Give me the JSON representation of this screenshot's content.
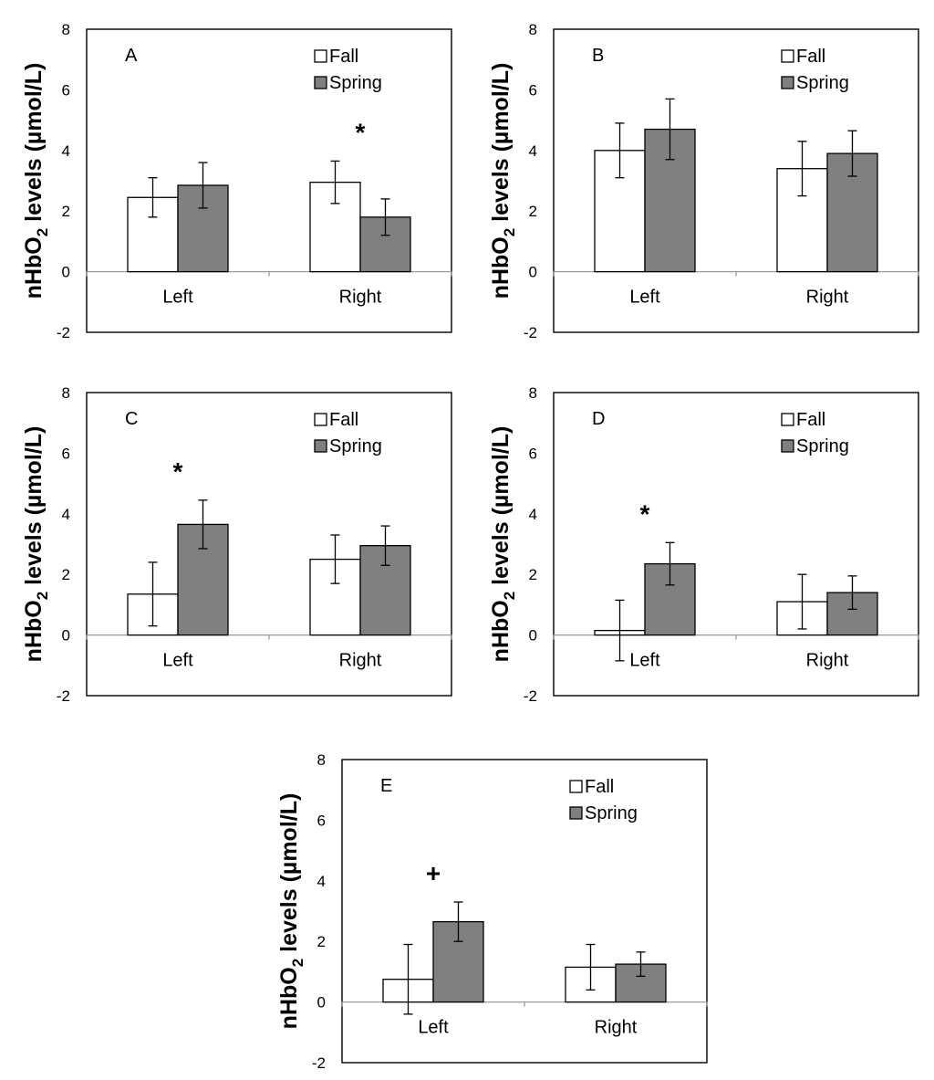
{
  "chart_data": [
    {
      "type": "bar",
      "panel_label": "A",
      "categories": [
        "Left",
        "Right"
      ],
      "series": [
        {
          "name": "Fall",
          "values": [
            2.45,
            2.95
          ],
          "errors": [
            0.65,
            0.7
          ],
          "color": "#ffffff"
        },
        {
          "name": "Spring",
          "values": [
            2.85,
            1.8
          ],
          "errors": [
            0.75,
            0.6
          ],
          "color": "#808080"
        }
      ],
      "ylabel_parts": [
        "nHbO",
        "2",
        " levels (µmol/L)"
      ],
      "ylim": [
        -2,
        8
      ],
      "yticks": [
        "8",
        "6",
        "4",
        "2",
        "0",
        "-2"
      ],
      "annotations": [
        {
          "text": "*",
          "category": 1
        }
      ],
      "legend": "top-right"
    },
    {
      "type": "bar",
      "panel_label": "B",
      "categories": [
        "Left",
        "Right"
      ],
      "series": [
        {
          "name": "Fall",
          "values": [
            4.0,
            3.4
          ],
          "errors": [
            0.9,
            0.9
          ],
          "color": "#ffffff"
        },
        {
          "name": "Spring",
          "values": [
            4.7,
            3.9
          ],
          "errors": [
            1.0,
            0.75
          ],
          "color": "#808080"
        }
      ],
      "ylabel_parts": [
        "nHbO",
        "2",
        " levels (µmol/L)"
      ],
      "ylim": [
        -2,
        8
      ],
      "yticks": [
        "8",
        "6",
        "4",
        "2",
        "0",
        "-2"
      ],
      "annotations": [],
      "legend": "top-right"
    },
    {
      "type": "bar",
      "panel_label": "C",
      "categories": [
        "Left",
        "Right"
      ],
      "series": [
        {
          "name": "Fall",
          "values": [
            1.35,
            2.5
          ],
          "errors": [
            1.05,
            0.8
          ],
          "color": "#ffffff"
        },
        {
          "name": "Spring",
          "values": [
            3.65,
            2.95
          ],
          "errors": [
            0.8,
            0.65
          ],
          "color": "#808080"
        }
      ],
      "ylabel_parts": [
        "nHbO",
        "2",
        " levels (µmol/L)"
      ],
      "ylim": [
        -2,
        8
      ],
      "yticks": [
        "8",
        "6",
        "4",
        "2",
        "0",
        "-2"
      ],
      "annotations": [
        {
          "text": "*",
          "category": 0
        }
      ],
      "legend": "top-right"
    },
    {
      "type": "bar",
      "panel_label": "D",
      "categories": [
        "Left",
        "Right"
      ],
      "series": [
        {
          "name": "Fall",
          "values": [
            0.15,
            1.1
          ],
          "errors": [
            1.0,
            0.9
          ],
          "color": "#ffffff"
        },
        {
          "name": "Spring",
          "values": [
            2.35,
            1.4
          ],
          "errors": [
            0.7,
            0.55
          ],
          "color": "#808080"
        }
      ],
      "ylabel_parts": [
        "nHbO",
        "2",
        " levels (µmol/L)"
      ],
      "ylim": [
        -2,
        8
      ],
      "yticks": [
        "8",
        "6",
        "4",
        "2",
        "0",
        "-2"
      ],
      "annotations": [
        {
          "text": "*",
          "category": 0
        }
      ],
      "legend": "top-right"
    },
    {
      "type": "bar",
      "panel_label": "E",
      "categories": [
        "Left",
        "Right"
      ],
      "series": [
        {
          "name": "Fall",
          "values": [
            0.75,
            1.15
          ],
          "errors": [
            1.15,
            0.75
          ],
          "color": "#ffffff"
        },
        {
          "name": "Spring",
          "values": [
            2.65,
            1.25
          ],
          "errors": [
            0.65,
            0.4
          ],
          "color": "#808080"
        }
      ],
      "ylabel_parts": [
        "nHbO",
        "2",
        " levels (µmol/L)"
      ],
      "ylim": [
        -2,
        8
      ],
      "yticks": [
        "8",
        "6",
        "4",
        "2",
        "0",
        "-2"
      ],
      "annotations": [
        {
          "text": "+",
          "category": 0
        }
      ],
      "legend": "top-right"
    }
  ]
}
